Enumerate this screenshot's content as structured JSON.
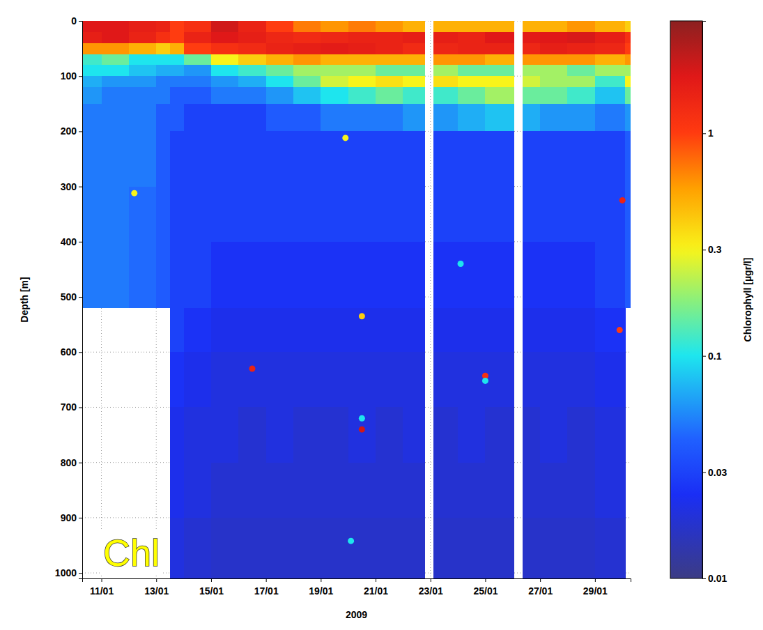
{
  "chart_data": {
    "type": "heatmap",
    "x_label": "2009",
    "y_label": "Depth [m]",
    "annotation": "Chl",
    "xlim": [
      10.3,
      30.3
    ],
    "xticks": [
      {
        "value": 11,
        "label": "11/01"
      },
      {
        "value": 13,
        "label": "13/01"
      },
      {
        "value": 15,
        "label": "15/01"
      },
      {
        "value": 17,
        "label": "17/01"
      },
      {
        "value": 19,
        "label": "19/01"
      },
      {
        "value": 21,
        "label": "21/01"
      },
      {
        "value": 23,
        "label": "23/01"
      },
      {
        "value": 25,
        "label": "25/01"
      },
      {
        "value": 27,
        "label": "27/01"
      },
      {
        "value": 29,
        "label": "29/01"
      }
    ],
    "ylim": [
      0,
      1010
    ],
    "yticks": [
      0,
      100,
      200,
      300,
      400,
      500,
      600,
      700,
      800,
      900,
      1000
    ],
    "grid": true,
    "cells": {
      "x_edges": [
        10.3,
        11,
        12,
        13,
        13.5,
        14,
        15,
        16,
        17,
        18,
        19,
        20,
        21,
        22,
        22.8,
        23.1,
        24,
        25,
        26.05,
        26.35,
        27,
        28,
        29,
        30.1,
        30.3
      ],
      "depth_edges": [
        0,
        20,
        40,
        60,
        80,
        100,
        120,
        150,
        200,
        300,
        400,
        520,
        600,
        700,
        800,
        900,
        1010
      ],
      "values": [
        [
          1.8,
          1.8,
          1.6,
          1.5,
          1.0,
          1.2,
          2.0,
          1.5,
          1.0,
          0.7,
          0.6,
          0.7,
          0.6,
          0.5,
          null,
          0.5,
          0.5,
          0.5,
          null,
          0.5,
          0.5,
          0.6,
          0.5,
          0.4
        ],
        [
          1.6,
          1.8,
          1.5,
          1.2,
          1.0,
          1.5,
          1.8,
          1.6,
          1.4,
          1.3,
          1.4,
          1.5,
          1.5,
          1.6,
          null,
          1.6,
          1.5,
          1.8,
          null,
          1.7,
          1.8,
          1.9,
          1.6,
          1.2
        ],
        [
          0.6,
          0.6,
          0.5,
          0.4,
          0.5,
          1.0,
          1.2,
          1.3,
          1.5,
          1.6,
          1.7,
          1.6,
          1.5,
          1.3,
          null,
          1.4,
          1.5,
          1.5,
          null,
          1.4,
          1.6,
          1.5,
          1.4,
          1.0
        ],
        [
          0.12,
          0.15,
          0.1,
          0.1,
          0.1,
          0.15,
          0.3,
          0.4,
          0.5,
          0.6,
          0.5,
          0.5,
          0.5,
          0.5,
          null,
          0.6,
          0.6,
          0.5,
          null,
          0.6,
          0.6,
          0.6,
          0.5,
          0.6
        ],
        [
          0.1,
          0.1,
          0.08,
          0.07,
          0.07,
          0.06,
          0.1,
          0.12,
          0.15,
          0.2,
          0.2,
          0.2,
          0.15,
          0.15,
          null,
          0.2,
          0.15,
          0.15,
          null,
          0.2,
          0.2,
          0.15,
          0.2,
          0.2
        ],
        [
          0.07,
          0.06,
          0.06,
          0.05,
          0.05,
          0.05,
          0.06,
          0.07,
          0.1,
          0.15,
          0.25,
          0.3,
          0.35,
          0.3,
          null,
          0.35,
          0.3,
          0.3,
          null,
          0.25,
          0.2,
          0.2,
          0.12,
          0.3
        ],
        [
          0.06,
          0.05,
          0.05,
          0.05,
          0.04,
          0.04,
          0.05,
          0.05,
          0.06,
          0.08,
          0.1,
          0.12,
          0.15,
          0.12,
          null,
          0.12,
          0.15,
          0.2,
          null,
          0.15,
          0.15,
          0.12,
          0.08,
          0.15
        ],
        [
          0.05,
          0.05,
          0.05,
          0.04,
          0.04,
          0.03,
          0.03,
          0.03,
          0.04,
          0.04,
          0.05,
          0.05,
          0.05,
          0.06,
          null,
          0.06,
          0.07,
          0.08,
          null,
          0.07,
          0.06,
          0.06,
          0.05,
          0.06
        ],
        [
          0.05,
          0.05,
          0.05,
          0.04,
          0.03,
          0.03,
          0.03,
          0.03,
          0.03,
          0.03,
          0.03,
          0.03,
          0.03,
          0.03,
          null,
          0.03,
          0.03,
          0.03,
          null,
          0.03,
          0.03,
          0.03,
          0.03,
          0.04
        ],
        [
          0.05,
          0.05,
          0.045,
          0.04,
          0.03,
          0.03,
          0.03,
          0.03,
          0.03,
          0.03,
          0.03,
          0.03,
          0.03,
          0.03,
          null,
          0.03,
          0.03,
          0.03,
          null,
          0.03,
          0.03,
          0.03,
          0.03,
          0.04
        ],
        [
          0.05,
          0.05,
          0.045,
          0.04,
          0.03,
          0.03,
          0.025,
          0.025,
          0.025,
          0.025,
          0.025,
          0.025,
          0.025,
          0.025,
          null,
          0.025,
          0.025,
          0.025,
          null,
          0.025,
          0.025,
          0.025,
          0.03,
          0.04
        ],
        [
          null,
          null,
          null,
          null,
          0.03,
          0.025,
          0.022,
          0.022,
          0.022,
          0.022,
          0.022,
          0.022,
          0.022,
          0.022,
          null,
          0.022,
          0.022,
          0.022,
          null,
          0.022,
          0.022,
          0.022,
          0.025,
          null
        ],
        [
          null,
          null,
          null,
          null,
          0.025,
          0.022,
          0.02,
          0.02,
          0.02,
          0.02,
          0.02,
          0.02,
          0.02,
          0.02,
          null,
          0.02,
          0.02,
          0.02,
          null,
          0.02,
          0.02,
          0.02,
          0.022,
          null
        ],
        [
          null,
          null,
          null,
          null,
          0.022,
          0.02,
          0.02,
          0.018,
          0.02,
          0.018,
          0.018,
          0.02,
          0.018,
          0.02,
          null,
          0.018,
          0.02,
          0.018,
          null,
          0.018,
          0.02,
          0.018,
          0.02,
          null
        ],
        [
          null,
          null,
          null,
          null,
          0.022,
          0.02,
          0.018,
          0.018,
          0.018,
          0.018,
          0.018,
          0.018,
          0.018,
          0.018,
          null,
          0.018,
          0.018,
          0.018,
          null,
          0.018,
          0.018,
          0.018,
          0.02,
          null
        ],
        [
          null,
          null,
          null,
          null,
          0.02,
          0.018,
          0.017,
          0.017,
          0.017,
          0.017,
          0.017,
          0.017,
          0.017,
          0.017,
          null,
          0.017,
          0.017,
          0.017,
          null,
          0.017,
          0.017,
          0.017,
          0.018,
          null
        ]
      ]
    },
    "points": {
      "x": [
        12.2,
        16.5,
        19.9,
        20.5,
        20.5,
        20.5,
        20.1,
        24.1,
        25.0,
        25.0,
        30.0,
        29.9
      ],
      "depth": [
        312,
        630,
        212,
        535,
        720,
        740,
        942,
        440,
        643,
        652,
        325,
        560
      ],
      "values": [
        0.3,
        1.5,
        0.3,
        0.4,
        0.1,
        2.0,
        0.1,
        0.1,
        1.2,
        0.1,
        1.5,
        1.0
      ]
    },
    "colorbar": {
      "label": "Chlorophyll [µgr/l]",
      "range": [
        0.01,
        3.2
      ],
      "ticks": [
        0.01,
        0.03,
        0.1,
        0.3,
        1
      ]
    }
  }
}
